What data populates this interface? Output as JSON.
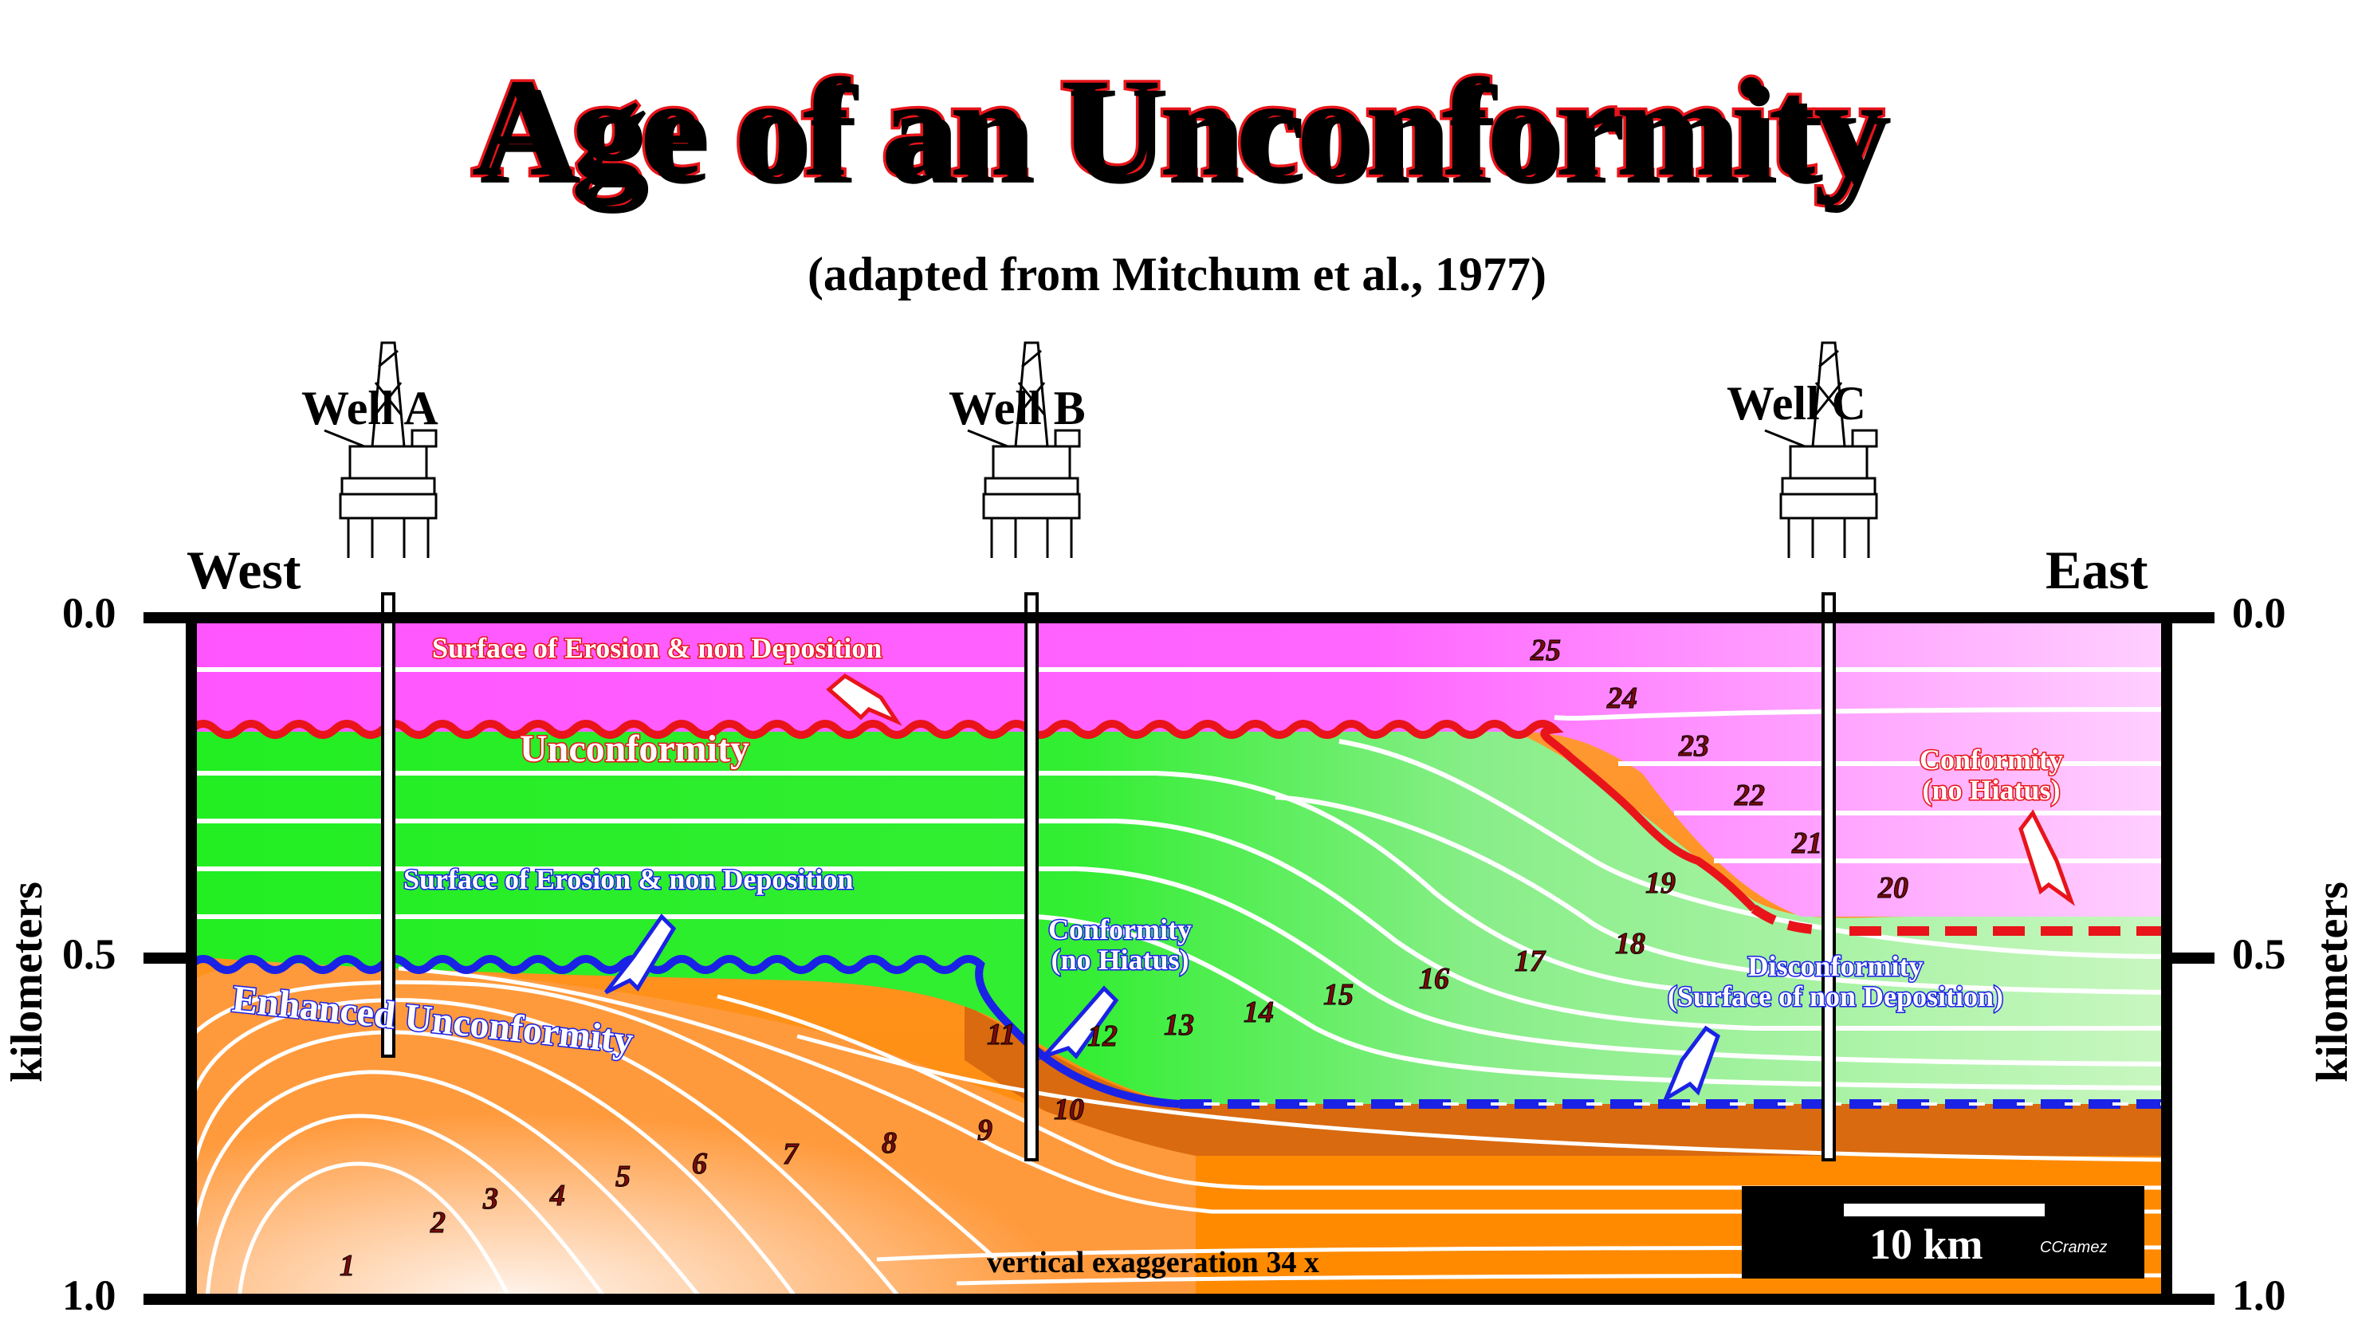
{
  "title": "Age of an Unconformity",
  "subtitle": "(adapted from Mitchum et al., 1977)",
  "wells": [
    {
      "label": "Well A"
    },
    {
      "label": "Well B"
    },
    {
      "label": "Well C"
    }
  ],
  "directions": {
    "west": "West",
    "east": "East"
  },
  "axis": {
    "left_title": "kilometers",
    "right_title": "kilometers",
    "ticks": [
      "0.0",
      "0.5",
      "1.0"
    ]
  },
  "annotations": {
    "surface_erosion_upper": "Surface of Erosion & non Deposition",
    "unconformity": "Unconformity",
    "surface_erosion_lower": "Surface of Erosion & non Deposition",
    "enhanced_unconformity": "Enhanced Unconformity",
    "conformity_left_1": "Conformity",
    "conformity_left_2": "(no Hiatus)",
    "conformity_right_1": "Conformity",
    "conformity_right_2": "(no Hiatus)",
    "disconformity_1": "Disconformity",
    "disconformity_2": "(Surface of non Deposition)"
  },
  "layer_numbers": [
    "1",
    "2",
    "3",
    "4",
    "5",
    "6",
    "7",
    "8",
    "9",
    "10",
    "11",
    "12",
    "13",
    "14",
    "15",
    "16",
    "17",
    "18",
    "19",
    "20",
    "21",
    "22",
    "23",
    "24",
    "25"
  ],
  "scale": {
    "label": "10 km",
    "credit": "CCramez"
  },
  "vertical_exaggeration": "vertical exaggeration 34 x",
  "colors": {
    "magenta_top": "#ff55ff",
    "green_bright": "#22ee22",
    "green_pale": "#c8f7c0",
    "orange_deep": "#ff8a00",
    "orange_dark": "#d96a10",
    "red_line": "#e8141a",
    "blue_line": "#1a22e6"
  }
}
